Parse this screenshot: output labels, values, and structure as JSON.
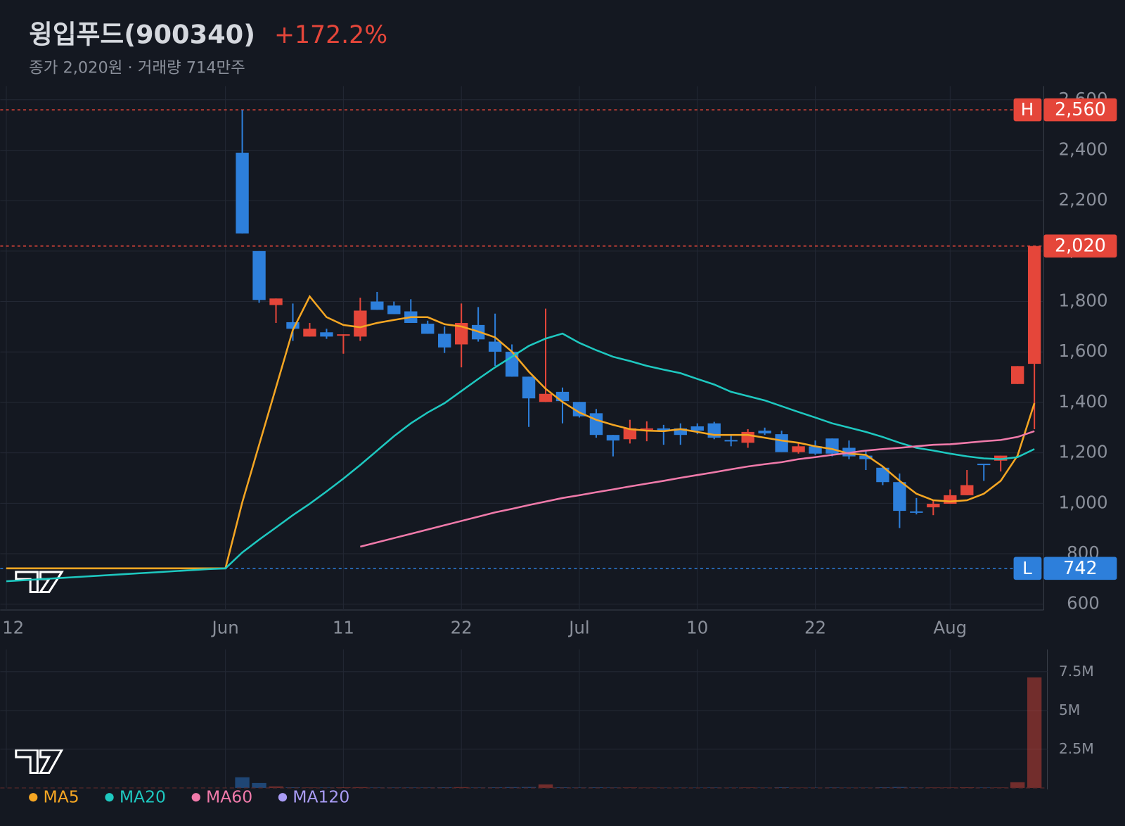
{
  "chart_data": {
    "type": "candlestick",
    "title": "윙입푸드(900340)",
    "change": "+172.2%",
    "subtitle": "종가 2,020원 · 거래량 714만주",
    "up_color": "#e5463a",
    "down_color": "#2d7fdb",
    "categories": [
      "12",
      null,
      null,
      null,
      null,
      null,
      null,
      null,
      null,
      null,
      null,
      null,
      null,
      "Jun",
      null,
      null,
      null,
      null,
      null,
      null,
      "11",
      null,
      null,
      null,
      null,
      null,
      null,
      "22",
      null,
      null,
      null,
      null,
      null,
      null,
      "Jul",
      null,
      null,
      null,
      null,
      null,
      null,
      "10",
      null,
      null,
      null,
      null,
      null,
      null,
      "22",
      null,
      null,
      null,
      null,
      null,
      null,
      null,
      "Aug",
      null,
      null,
      null,
      null,
      null
    ],
    "open": [
      null,
      null,
      null,
      null,
      null,
      null,
      null,
      null,
      null,
      null,
      null,
      null,
      null,
      null,
      2390,
      2000,
      1786,
      1718,
      1661,
      1678,
      1667,
      1661,
      1800,
      1784,
      1761,
      1712,
      1672,
      1630,
      1707,
      1641,
      1601,
      1502,
      1402,
      1442,
      1402,
      1357,
      1271,
      1254,
      1294,
      1297,
      1297,
      1305,
      1317,
      1251,
      1240,
      1288,
      1274,
      1203,
      1226,
      1257,
      1220,
      1189,
      1141,
      1084,
      968,
      984,
      998,
      1032,
      1157,
      1169,
      1473,
      1553
    ],
    "high": [
      null,
      null,
      null,
      null,
      null,
      null,
      null,
      null,
      null,
      null,
      null,
      null,
      null,
      null,
      2560,
      2000,
      1812,
      1792,
      1715,
      1692,
      1670,
      1815,
      1838,
      1800,
      1809,
      1724,
      1701,
      1792,
      1778,
      1752,
      1630,
      1502,
      1772,
      1459,
      1402,
      1374,
      1271,
      1331,
      1325,
      1311,
      1317,
      1317,
      1323,
      1269,
      1294,
      1300,
      1288,
      1237,
      1249,
      1257,
      1249,
      1209,
      1146,
      1118,
      1021,
      1012,
      1055,
      1132,
      1157,
      1189,
      1544,
      2020
    ],
    "low": [
      null,
      null,
      null,
      null,
      null,
      null,
      null,
      null,
      null,
      null,
      null,
      null,
      null,
      null,
      2070,
      1795,
      1715,
      1644,
      1661,
      1652,
      1593,
      1644,
      1767,
      1750,
      1715,
      1672,
      1596,
      1539,
      1641,
      1545,
      1502,
      1303,
      1402,
      1317,
      1340,
      1260,
      1186,
      1237,
      1246,
      1232,
      1232,
      1274,
      1254,
      1226,
      1220,
      1271,
      1203,
      1197,
      1192,
      1186,
      1175,
      1132,
      1072,
      902,
      956,
      953,
      998,
      1032,
      1089,
      1126,
      1473,
      1294
    ],
    "close": [
      null,
      null,
      null,
      null,
      null,
      null,
      null,
      null,
      null,
      null,
      null,
      null,
      null,
      null,
      2070,
      1806,
      1812,
      1692,
      1692,
      1661,
      1670,
      1764,
      1767,
      1750,
      1715,
      1672,
      1618,
      1715,
      1650,
      1601,
      1502,
      1416,
      1434,
      1405,
      1345,
      1271,
      1249,
      1297,
      1297,
      1288,
      1271,
      1288,
      1260,
      1249,
      1283,
      1277,
      1203,
      1226,
      1197,
      1197,
      1186,
      1175,
      1084,
      970,
      965,
      998,
      1032,
      1072,
      1155,
      1189,
      1544,
      2020
    ],
    "series": [
      {
        "name": "MA5",
        "color": "#f5a623",
        "values": [
          742,
          742,
          742,
          742,
          742,
          742,
          742,
          742,
          742,
          742,
          742,
          742,
          742,
          742,
          1004,
          1232,
          1459,
          1687,
          1820,
          1738,
          1707,
          1698,
          1715,
          1727,
          1738,
          1738,
          1710,
          1701,
          1681,
          1658,
          1601,
          1522,
          1454,
          1402,
          1360,
          1331,
          1311,
          1294,
          1288,
          1286,
          1294,
          1283,
          1271,
          1271,
          1271,
          1260,
          1249,
          1240,
          1226,
          1215,
          1197,
          1192,
          1146,
          1089,
          1038,
          1012,
          1007,
          1012,
          1038,
          1089,
          1189,
          1397
        ]
      },
      {
        "name": "MA20",
        "color": "#1ec8c0",
        "values": [
          691,
          695,
          699,
          703,
          707,
          711,
          715,
          719,
          723,
          727,
          731,
          735,
          739,
          742,
          805,
          856,
          904,
          953,
          998,
          1047,
          1098,
          1152,
          1209,
          1266,
          1317,
          1360,
          1397,
          1445,
          1493,
          1539,
          1581,
          1624,
          1653,
          1673,
          1636,
          1607,
          1581,
          1564,
          1545,
          1530,
          1516,
          1493,
          1471,
          1442,
          1425,
          1408,
          1385,
          1362,
          1340,
          1317,
          1300,
          1283,
          1263,
          1240,
          1220,
          1209,
          1197,
          1186,
          1178,
          1175,
          1183,
          1215
        ]
      },
      {
        "name": "MA60",
        "color": "#f07aaa",
        "values": [
          null,
          null,
          null,
          null,
          null,
          null,
          null,
          null,
          null,
          null,
          null,
          null,
          null,
          null,
          null,
          null,
          null,
          null,
          null,
          null,
          null,
          828,
          845,
          862,
          879,
          896,
          913,
          930,
          947,
          964,
          978,
          993,
          1007,
          1021,
          1032,
          1044,
          1055,
          1067,
          1078,
          1089,
          1101,
          1112,
          1123,
          1135,
          1146,
          1155,
          1163,
          1175,
          1183,
          1192,
          1200,
          1209,
          1215,
          1220,
          1226,
          1232,
          1234,
          1240,
          1246,
          1251,
          1263,
          1286
        ]
      },
      {
        "name": "MA120",
        "color": "#a99cf5",
        "values": [
          null,
          null,
          null,
          null,
          null,
          null,
          null,
          null,
          null,
          null,
          null,
          null,
          null,
          null,
          null,
          null,
          null,
          null,
          null,
          null,
          null,
          null,
          null,
          null,
          null,
          null,
          null,
          null,
          null,
          null,
          null,
          null,
          null,
          null,
          null,
          null,
          null,
          null,
          null,
          null,
          null,
          null,
          null,
          null,
          null,
          null,
          null,
          null,
          null,
          null,
          null,
          null,
          null,
          null,
          null,
          null,
          null,
          null,
          null,
          null,
          null,
          null
        ]
      }
    ],
    "ylim": [
      577,
      2654
    ],
    "yticks": [
      600,
      800,
      {
        "value": 1000,
        "label": "1,000"
      },
      {
        "value": 1200,
        "label": "1,200"
      },
      {
        "value": 1400,
        "label": "1,400"
      },
      {
        "value": 1600,
        "label": "1,600"
      },
      {
        "value": 1800,
        "label": "1,800"
      },
      {
        "value": 2000,
        "label": "2,000"
      },
      {
        "value": 2200,
        "label": "2,200"
      },
      {
        "value": 2400,
        "label": "2,400"
      },
      {
        "value": 2600,
        "label": "2,600"
      }
    ],
    "grid": true,
    "markers": [
      {
        "tag": "H",
        "value": 2560,
        "value_label": "2,560",
        "color": "#e5463a"
      },
      {
        "value": 2020,
        "value_label": "2,020",
        "color": "#e5463a"
      },
      {
        "tag": "L",
        "value": 742,
        "value_label": "742",
        "color": "#2d7fdb"
      }
    ],
    "volume": {
      "values": [
        null,
        null,
        null,
        null,
        null,
        null,
        null,
        null,
        null,
        null,
        null,
        null,
        null,
        null,
        690000,
        320000,
        100000,
        40000,
        30000,
        30000,
        40000,
        50000,
        30000,
        30000,
        30000,
        30000,
        40000,
        50000,
        30000,
        40000,
        50000,
        60000,
        230000,
        40000,
        30000,
        40000,
        30000,
        30000,
        20000,
        20000,
        20000,
        20000,
        30000,
        20000,
        30000,
        20000,
        40000,
        20000,
        20000,
        30000,
        20000,
        20000,
        40000,
        60000,
        30000,
        30000,
        30000,
        40000,
        30000,
        30000,
        370000,
        7140000
      ],
      "ylim": [
        0,
        8940000
      ],
      "yticks": [
        {
          "value": 2500000,
          "label": "2.5M"
        },
        {
          "value": 5000000,
          "label": "5M"
        },
        {
          "value": 7500000,
          "label": "7.5M"
        }
      ]
    }
  }
}
